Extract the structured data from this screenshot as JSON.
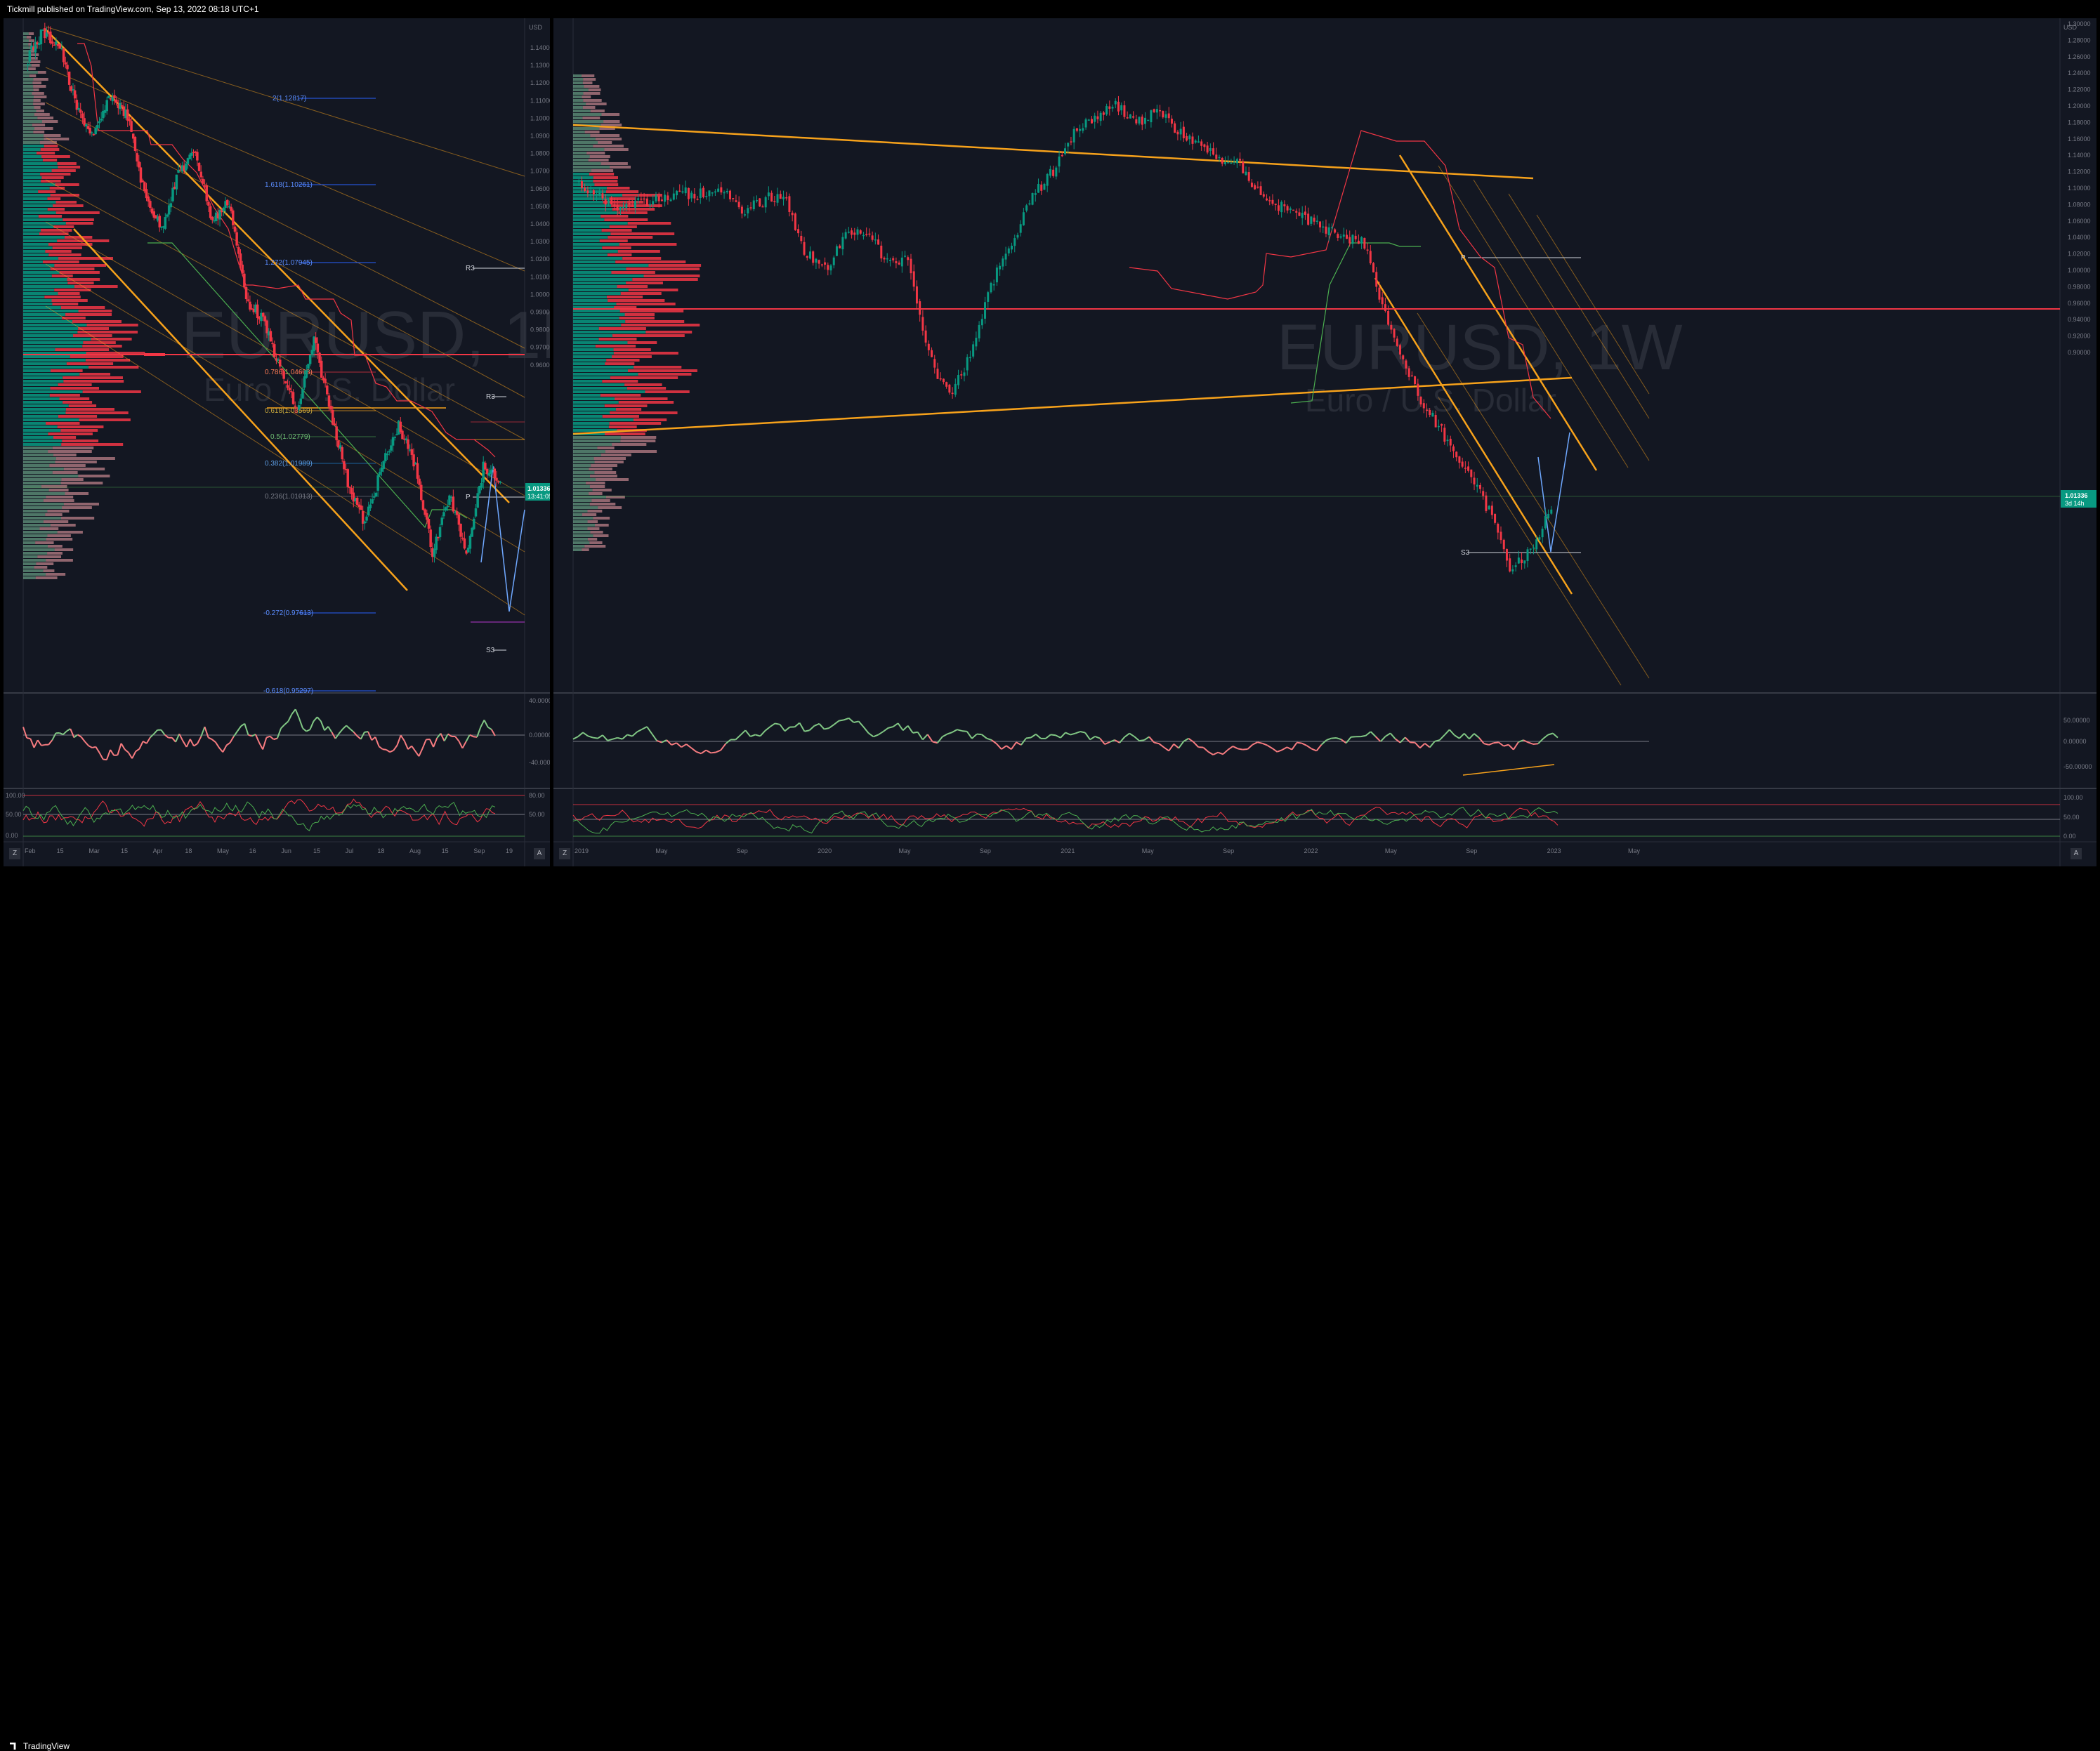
{
  "header": {
    "published": "Tickmill published on TradingView.com, Sep 13, 2022 08:18 UTC+1"
  },
  "footer": {
    "brand": "TradingView"
  },
  "left_chart": {
    "symbol": "EURUSD, 1D",
    "description": "Euro / U.S. Dollar",
    "currency": "USD",
    "price_ticks": [
      "1.14000",
      "1.13000",
      "1.12000",
      "1.11000",
      "1.10000",
      "1.09000",
      "1.08000",
      "1.07000",
      "1.06000",
      "1.05000",
      "1.04000",
      "1.03000",
      "1.02000",
      "1.01000",
      "1.00000",
      "0.99000",
      "0.98000",
      "0.97000",
      "0.96000"
    ],
    "last_price": "1.01336",
    "countdown": "13:41:05",
    "time_ticks": [
      "Feb",
      "15",
      "Mar",
      "15",
      "Apr",
      "18",
      "May",
      "16",
      "Jun",
      "15",
      "Jul",
      "18",
      "Aug",
      "15",
      "Sep",
      "19"
    ],
    "fib_levels": [
      "2(1.12817)",
      "1.618(1.10261)",
      "1.272(1.07945)",
      "0.786(1.04693)",
      "0.618(1.03569)",
      "0.5(1.02779)",
      "0.382(1.01989)",
      "0.236(1.01013)",
      "-0.272(0.97613)",
      "-0.618(0.95297)"
    ],
    "pivots": [
      "R3",
      "R3",
      "P",
      "S3"
    ],
    "osc1_ticks": [
      "40.00000",
      "0.00000",
      "-40.00000"
    ],
    "osc2_ticks": [
      "80.00",
      "50.00"
    ],
    "osc2_left_ticks": [
      "100.00",
      "50.00",
      "0.00"
    ]
  },
  "right_chart": {
    "symbol": "EURUSD, 1W",
    "description": "Euro / U.S. Dollar",
    "currency": "USD",
    "price_ticks": [
      "1.30000",
      "1.28000",
      "1.26000",
      "1.24000",
      "1.22000",
      "1.20000",
      "1.18000",
      "1.16000",
      "1.14000",
      "1.12000",
      "1.10000",
      "1.08000",
      "1.06000",
      "1.04000",
      "1.02000",
      "1.00000",
      "0.98000",
      "0.96000",
      "0.94000",
      "0.92000",
      "0.90000"
    ],
    "last_price": "1.01336",
    "countdown": "3d 14h",
    "time_ticks": [
      "2019",
      "May",
      "Sep",
      "2020",
      "May",
      "Sep",
      "2021",
      "May",
      "Sep",
      "2022",
      "May",
      "Sep",
      "2023",
      "May"
    ],
    "pivots": [
      "P",
      "S3"
    ],
    "osc1_ticks": [
      "50.00000",
      "0.00000",
      "-50.00000"
    ],
    "osc2_ticks": [
      "100.00",
      "50.00",
      "0.00"
    ]
  },
  "controls": {
    "zoom_label": "Z",
    "auto_label": "A"
  },
  "colors": {
    "bull": "#089981",
    "bear": "#f23645",
    "orange": "#f7a21b",
    "fib_blue": "#2962ff",
    "price_label": "#089981"
  }
}
